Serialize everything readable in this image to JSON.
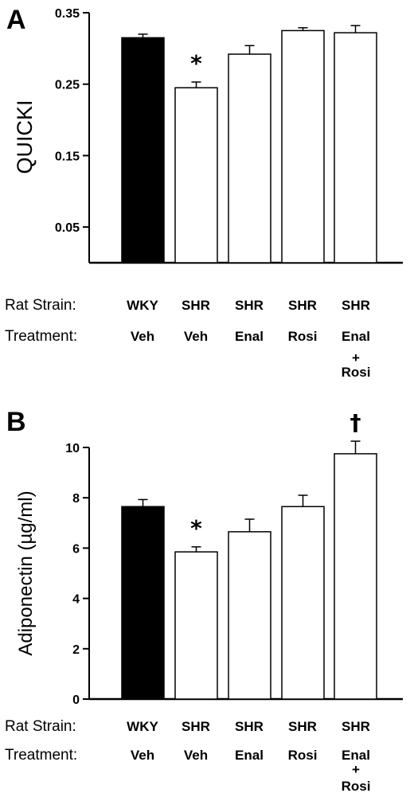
{
  "chart_data": [
    {
      "type": "bar",
      "panel": "A",
      "ylabel": "QUICKI",
      "ylim": [
        0,
        0.35
      ],
      "yticks": [
        "0.05",
        "0.15",
        "0.25",
        "0.35"
      ],
      "row_labels": {
        "strain": "Rat Strain:",
        "treatment": "Treatment:"
      },
      "categories": [
        {
          "strain": "WKY",
          "treatment": "Veh",
          "treatment_extra": ""
        },
        {
          "strain": "SHR",
          "treatment": "Veh",
          "treatment_extra": ""
        },
        {
          "strain": "SHR",
          "treatment": "Enal",
          "treatment_extra": ""
        },
        {
          "strain": "SHR",
          "treatment": "Rosi",
          "treatment_extra": ""
        },
        {
          "strain": "SHR",
          "treatment": "Enal",
          "treatment_extra": "+ Rosi"
        }
      ],
      "values": [
        0.315,
        0.245,
        0.292,
        0.325,
        0.322
      ],
      "errors": [
        0.005,
        0.008,
        0.012,
        0.004,
        0.01
      ],
      "fills": [
        "#000000",
        "#ffffff",
        "#ffffff",
        "#ffffff",
        "#ffffff"
      ],
      "significance": [
        "",
        "*",
        "",
        "",
        ""
      ]
    },
    {
      "type": "bar",
      "panel": "B",
      "ylabel": "Adiponectin (µg/ml)",
      "ylim": [
        0,
        10
      ],
      "yticks": [
        "0",
        "2",
        "4",
        "6",
        "8",
        "10"
      ],
      "row_labels": {
        "strain": "Rat Strain:",
        "treatment": "Treatment:"
      },
      "categories": [
        {
          "strain": "WKY",
          "treatment": "Veh",
          "treatment_extra": ""
        },
        {
          "strain": "SHR",
          "treatment": "Veh",
          "treatment_extra": ""
        },
        {
          "strain": "SHR",
          "treatment": "Enal",
          "treatment_extra": ""
        },
        {
          "strain": "SHR",
          "treatment": "Rosi",
          "treatment_extra": ""
        },
        {
          "strain": "SHR",
          "treatment": "Enal",
          "treatment_extra": "+ Rosi"
        }
      ],
      "values": [
        7.65,
        5.85,
        6.65,
        7.65,
        9.75
      ],
      "errors": [
        0.28,
        0.2,
        0.5,
        0.45,
        0.5
      ],
      "fills": [
        "#000000",
        "#ffffff",
        "#ffffff",
        "#ffffff",
        "#ffffff"
      ],
      "significance": [
        "",
        "*",
        "",
        "",
        "†"
      ]
    }
  ]
}
